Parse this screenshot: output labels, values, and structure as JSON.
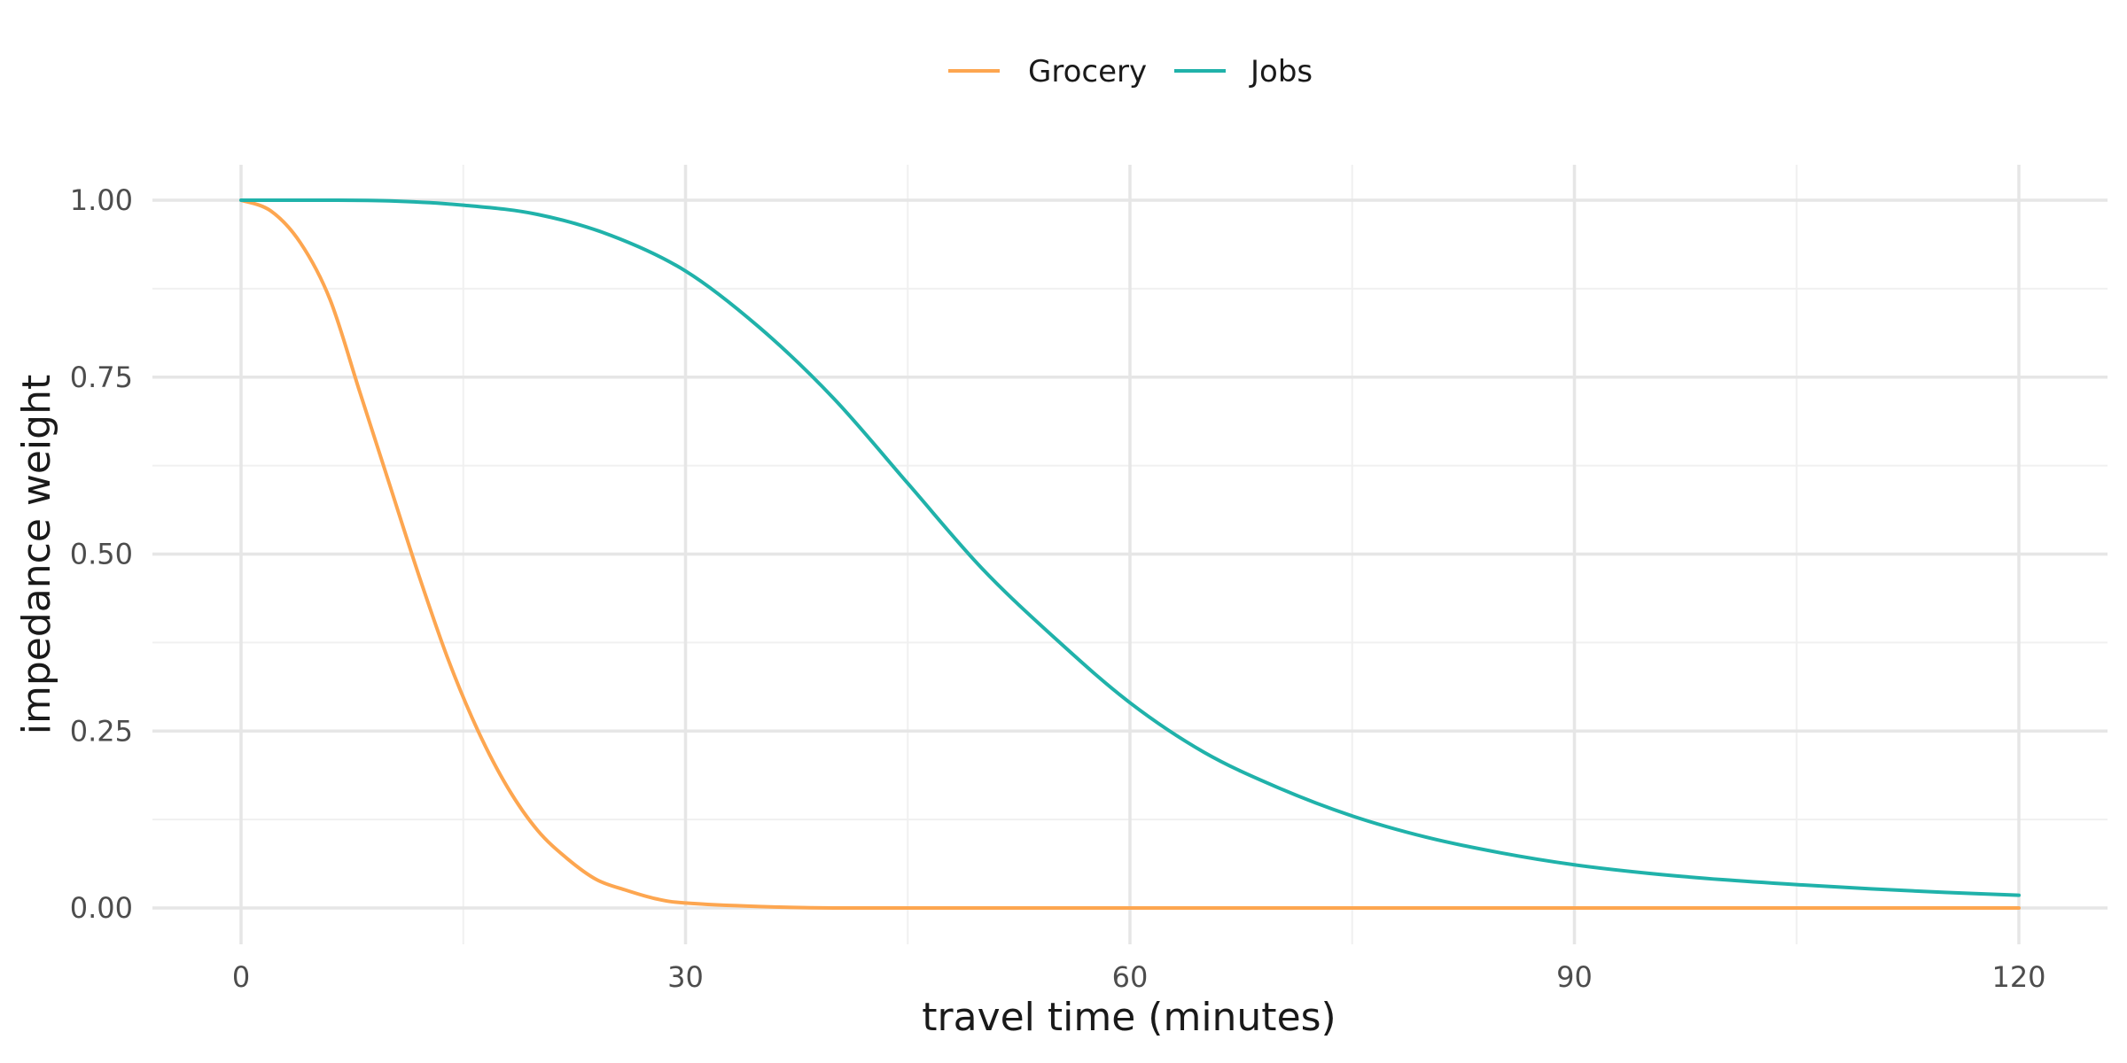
{
  "chart_data": {
    "type": "line",
    "xlabel": "travel time (minutes)",
    "ylabel": "impedance weight",
    "xlim": [
      0,
      120
    ],
    "ylim": [
      0,
      1
    ],
    "x_ticks": [
      0,
      30,
      60,
      90,
      120
    ],
    "x_tick_labels": [
      "0",
      "30",
      "60",
      "90",
      "120"
    ],
    "y_ticks": [
      0,
      0.25,
      0.5,
      0.75,
      1.0
    ],
    "y_tick_labels": [
      "0.00",
      "0.25",
      "0.50",
      "0.75",
      "1.00"
    ],
    "grid": true,
    "legend_position": "top",
    "series": [
      {
        "name": "Grocery",
        "color": "#FDA650",
        "x": [
          0,
          2,
          4,
          6,
          8,
          10,
          12,
          14,
          16,
          18,
          20,
          22,
          24,
          26,
          28,
          30,
          35,
          40,
          50,
          60,
          70,
          80,
          90,
          100,
          110,
          120
        ],
        "y": [
          1.0,
          0.985,
          0.94,
          0.86,
          0.73,
          0.6,
          0.47,
          0.35,
          0.25,
          0.17,
          0.11,
          0.07,
          0.04,
          0.025,
          0.013,
          0.007,
          0.002,
          0.0,
          0.0,
          0.0,
          0.0,
          0.0,
          0.0,
          0.0,
          0.0,
          0.0
        ]
      },
      {
        "name": "Jobs",
        "color": "#20B2AA",
        "x": [
          0,
          5,
          10,
          15,
          20,
          25,
          30,
          35,
          40,
          45,
          50,
          55,
          60,
          65,
          70,
          75,
          80,
          85,
          90,
          95,
          100,
          105,
          110,
          115,
          120
        ],
        "y": [
          1.0,
          1.0,
          0.999,
          0.993,
          0.98,
          0.95,
          0.9,
          0.82,
          0.72,
          0.6,
          0.48,
          0.38,
          0.29,
          0.22,
          0.17,
          0.13,
          0.1,
          0.078,
          0.061,
          0.049,
          0.04,
          0.033,
          0.027,
          0.022,
          0.018
        ]
      }
    ]
  }
}
